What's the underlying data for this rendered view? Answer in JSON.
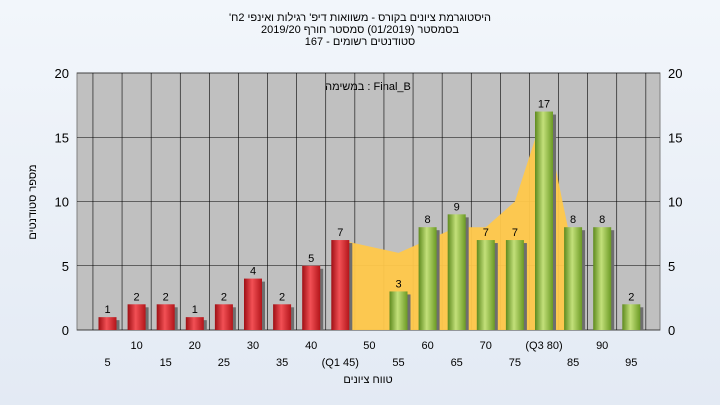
{
  "chart_data": {
    "type": "bar",
    "title_lines": [
      "'היסטוגרמת ציונים בקורס - משוואות דיפ' רגילות ואינפי 2ח",
      "בסמסטר  (01/2019)  סמסטר חורף 2019/20",
      "סטודנטים רשומים - 167"
    ],
    "subtitle": "במשימה : Final_B",
    "xlabel": "טווח ציונים",
    "ylabel": "מספר סטודנטים",
    "ylim": [
      0,
      20
    ],
    "yticks": [
      0,
      5,
      10,
      15,
      20
    ],
    "categories": [
      5,
      10,
      15,
      20,
      25,
      30,
      35,
      40,
      45,
      50,
      55,
      60,
      65,
      70,
      75,
      80,
      85,
      90,
      95
    ],
    "category_labels": [
      "5",
      "10",
      "15",
      "20",
      "25",
      "30",
      "35",
      "40",
      "(Q1 45)",
      "50",
      "55",
      "60",
      "65",
      "70",
      "75",
      "(Q3 80)",
      "85",
      "90",
      "95"
    ],
    "values": [
      1,
      2,
      2,
      1,
      2,
      4,
      2,
      5,
      7,
      0,
      3,
      8,
      9,
      7,
      7,
      17,
      8,
      8,
      2
    ],
    "bar_colors": [
      "red",
      "red",
      "red",
      "red",
      "red",
      "red",
      "red",
      "red",
      "red",
      "green",
      "green",
      "green",
      "green",
      "green",
      "green",
      "green",
      "green",
      "green",
      "green"
    ],
    "area_x": [
      45,
      50,
      55,
      60,
      65,
      70,
      75,
      80,
      85
    ],
    "area_y": [
      7,
      6.5,
      6,
      7,
      8,
      8,
      10,
      17,
      6
    ],
    "colors": {
      "red_bar": "#d9262c",
      "green_bar": "#8fbc3c",
      "area": "#ffc84a",
      "plot_bg": "#c0c0c0"
    }
  }
}
